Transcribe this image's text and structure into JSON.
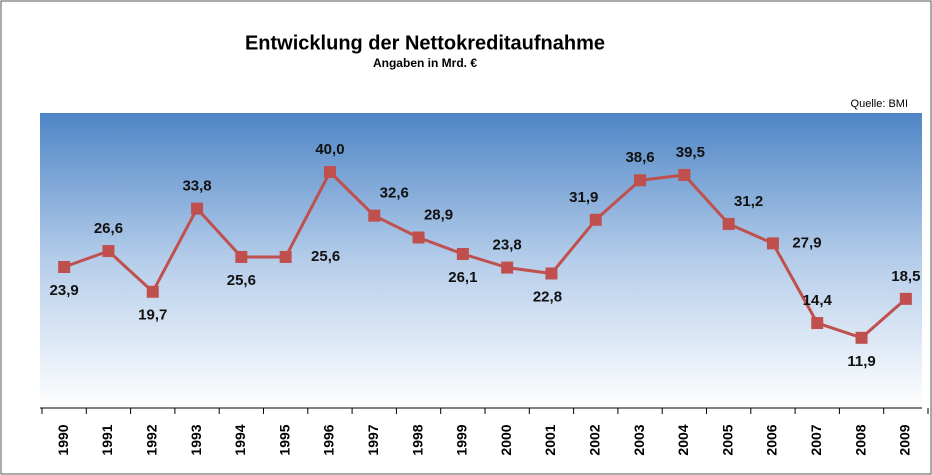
{
  "chart_data": {
    "type": "line",
    "title": "Entwicklung der Nettokreditaufnahme",
    "subtitle": "Angaben in Mrd. €",
    "source": "Quelle: BMI",
    "categories": [
      "1990",
      "1991",
      "1992",
      "1993",
      "1994",
      "1995",
      "1996",
      "1997",
      "1998",
      "1999",
      "2000",
      "2001",
      "2002",
      "2003",
      "2004",
      "2005",
      "2006",
      "2007",
      "2008",
      "2009"
    ],
    "series": [
      {
        "name": "Nettokreditaufnahme",
        "color": "#c0504d",
        "values": [
          23.9,
          26.6,
          19.7,
          33.8,
          25.6,
          25.6,
          40.0,
          32.6,
          28.9,
          26.1,
          23.8,
          22.8,
          31.9,
          38.6,
          39.5,
          31.2,
          27.9,
          14.4,
          11.9,
          18.5
        ],
        "value_labels": [
          "23,9",
          "26,6",
          "19,7",
          "33,8",
          "25,6",
          "25,6",
          "40,0",
          "32,6",
          "28,9",
          "26,1",
          "23,8",
          "22,8",
          "31,9",
          "38,6",
          "39,5",
          "31,2",
          "27,9",
          "14,4",
          "11,9",
          "18,5"
        ]
      }
    ],
    "ylim": [
      0,
      50
    ]
  }
}
